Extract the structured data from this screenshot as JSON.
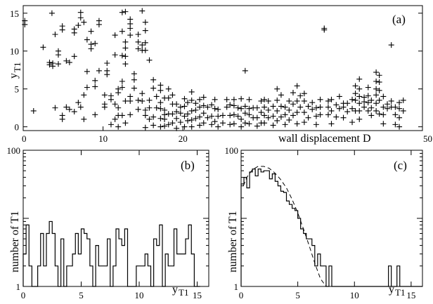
{
  "chart_data": [
    {
      "panel": "(a)",
      "type": "scatter",
      "xlabel": "wall displacement  D",
      "ylabel": "y",
      "ylabel_sub": "T1",
      "xlim": [
        0,
        50
      ],
      "ylim": [
        -0.5,
        16
      ],
      "xticks": [
        0,
        10,
        20,
        50
      ],
      "xtick_labels": [
        "0",
        "10",
        "20",
        "50"
      ],
      "yticks": [
        0,
        5,
        10,
        15
      ],
      "ytick_labels": [
        "0",
        "5",
        "10",
        "15"
      ],
      "marker": "plus",
      "clusters": [
        {
          "x": 0.2,
          "y": [
            13.5,
            14.0
          ]
        },
        {
          "x": 1.3,
          "y": [
            2.1
          ]
        },
        {
          "x": 2.5,
          "y": [
            10.5
          ]
        },
        {
          "x": 3.3,
          "y": [
            8.2,
            8.5
          ]
        },
        {
          "x": 3.6,
          "y": [
            15.0
          ]
        },
        {
          "x": 3.7,
          "y": [
            8.0,
            8.4
          ]
        },
        {
          "x": 4.0,
          "y": [
            2.5,
            12.2
          ]
        },
        {
          "x": 4.4,
          "y": [
            8.3,
            9.5,
            10.0
          ]
        },
        {
          "x": 4.9,
          "y": [
            1.0,
            1.5,
            12.8,
            13.3
          ]
        },
        {
          "x": 5.4,
          "y": [
            2.6,
            8.7
          ]
        },
        {
          "x": 5.8,
          "y": [
            2.3,
            8.5
          ]
        },
        {
          "x": 6.4,
          "y": [
            2.0,
            9.3,
            12.4,
            12.9
          ]
        },
        {
          "x": 6.9,
          "y": [
            3.2,
            13.4
          ]
        },
        {
          "x": 7.2,
          "y": [
            2.6,
            14.4,
            15.1
          ]
        },
        {
          "x": 7.6,
          "y": [
            1.0,
            4.2,
            13.8
          ]
        },
        {
          "x": 8.0,
          "y": [
            5.2,
            7.3,
            11.5
          ]
        },
        {
          "x": 8.5,
          "y": [
            10.3,
            10.9,
            12.6
          ]
        },
        {
          "x": 9.0,
          "y": [
            1.6,
            5.3,
            6.1,
            11.0
          ]
        },
        {
          "x": 9.5,
          "y": [
            7.4,
            13.5,
            14.0
          ]
        },
        {
          "x": 10.2,
          "y": [
            4.2,
            3.0,
            2.6
          ]
        },
        {
          "x": 10.5,
          "y": [
            6.9,
            7.4,
            8.4
          ]
        },
        {
          "x": 11.0,
          "y": [
            0.3,
            3.6,
            4.1
          ]
        },
        {
          "x": 11.5,
          "y": [
            1.0,
            3.0,
            9.5,
            12.1
          ]
        },
        {
          "x": 11.9,
          "y": [
            0.0,
            1.5,
            2.5,
            4.5,
            5.0
          ]
        },
        {
          "x": 12.4,
          "y": [
            1.5,
            5.2,
            6.0,
            9.4,
            12.6,
            15.1
          ]
        },
        {
          "x": 12.8,
          "y": [
            0.5,
            3.4,
            8.3,
            9.3,
            10.4,
            11.2,
            15.2
          ]
        },
        {
          "x": 13.4,
          "y": [
            1.6,
            3.4,
            4.0,
            12.1,
            13.0,
            13.6,
            14.2
          ]
        },
        {
          "x": 13.9,
          "y": [
            5.1,
            6.2,
            7.0
          ]
        },
        {
          "x": 14.4,
          "y": [
            2.3,
            3.5,
            10.3,
            11.2,
            12.2
          ]
        },
        {
          "x": 14.9,
          "y": [
            3.4,
            4.4,
            10.1,
            10.8,
            15.3
          ]
        },
        {
          "x": 15.3,
          "y": [
            -0.1,
            1.5,
            2.2,
            10.1,
            11.1,
            12.7,
            13.8
          ]
        },
        {
          "x": 15.8,
          "y": [
            1.0,
            2.5,
            3.5,
            8.8
          ]
        },
        {
          "x": 16.3,
          "y": [
            0.2,
            1.3,
            5.1,
            6.2
          ]
        },
        {
          "x": 16.7,
          "y": [
            2.5,
            4.0
          ]
        },
        {
          "x": 17.2,
          "y": [
            0.0,
            1.1,
            2.4,
            3.2,
            4.8,
            5.5
          ]
        },
        {
          "x": 17.7,
          "y": [
            0.1,
            1.0,
            1.6,
            2.2,
            3.8
          ]
        },
        {
          "x": 18.2,
          "y": [
            0.3,
            1.7,
            3.8,
            5.0
          ]
        },
        {
          "x": 18.7,
          "y": [
            0.5,
            1.7,
            3.0,
            4.2
          ]
        },
        {
          "x": 19.2,
          "y": [
            -0.2,
            1.1,
            2.0,
            3.0
          ]
        },
        {
          "x": 19.7,
          "y": [
            0.6,
            1.8,
            2.6
          ]
        },
        {
          "x": 20.2,
          "y": [
            0.0,
            1.4,
            2.7,
            3.7
          ]
        },
        {
          "x": 20.6,
          "y": [
            0.8,
            1.7,
            3.2
          ]
        },
        {
          "x": 21.1,
          "y": [
            0.0,
            0.9,
            2.1,
            3.5,
            4.6
          ]
        },
        {
          "x": 21.6,
          "y": [
            1.1,
            2.2,
            3.1
          ]
        },
        {
          "x": 22.1,
          "y": [
            0.2,
            1.3,
            2.6,
            3.6
          ]
        },
        {
          "x": 22.6,
          "y": [
            0.5,
            1.8,
            2.8,
            3.9
          ]
        },
        {
          "x": 23.1,
          "y": [
            1.2,
            2.6
          ]
        },
        {
          "x": 23.6,
          "y": [
            0.3,
            1.4,
            2.9
          ]
        },
        {
          "x": 24.0,
          "y": [
            0.7,
            2.4,
            3.6
          ]
        },
        {
          "x": 24.4,
          "y": [
            0.0,
            1.4,
            2.3
          ]
        },
        {
          "x": 25.0,
          "y": [
            0.5,
            1.5
          ]
        },
        {
          "x": 25.5,
          "y": [
            2.6,
            3.6
          ]
        },
        {
          "x": 25.9,
          "y": [
            0.3,
            1.5,
            2.9
          ]
        },
        {
          "x": 26.4,
          "y": [
            0.4,
            1.6,
            2.8,
            3.6
          ]
        },
        {
          "x": 26.9,
          "y": [
            1.4,
            2.5
          ]
        },
        {
          "x": 27.3,
          "y": [
            0.0,
            1.0,
            2.4,
            3.7
          ]
        },
        {
          "x": 27.8,
          "y": [
            0.5,
            1.8,
            2.7,
            7.4
          ]
        },
        {
          "x": 28.3,
          "y": [
            0.4,
            1.6,
            2.4,
            3.6
          ]
        },
        {
          "x": 28.8,
          "y": [
            1.2,
            2.5
          ]
        },
        {
          "x": 29.3,
          "y": [
            0.1,
            1.2,
            2.5
          ]
        },
        {
          "x": 29.8,
          "y": [
            0.5,
            1.9,
            3.4
          ]
        },
        {
          "x": 30.2,
          "y": [
            0.5,
            1.5,
            2.6,
            3.6
          ]
        },
        {
          "x": 30.7,
          "y": [
            1.2,
            2.2,
            3.4
          ]
        },
        {
          "x": 31.3,
          "y": [
            0.2,
            1.4,
            2.7
          ]
        },
        {
          "x": 31.8,
          "y": [
            0.8,
            2.1,
            3.5,
            5.0
          ]
        },
        {
          "x": 32.3,
          "y": [
            1.3,
            2.7,
            4.2
          ]
        },
        {
          "x": 32.8,
          "y": [
            0.3,
            1.6,
            2.6
          ]
        },
        {
          "x": 33.3,
          "y": [
            0.9,
            2.2,
            3.4
          ]
        },
        {
          "x": 33.8,
          "y": [
            1.5,
            3.0,
            4.5
          ]
        },
        {
          "x": 34.3,
          "y": [
            0.4,
            1.9,
            3.4,
            5.4
          ]
        },
        {
          "x": 34.7,
          "y": [
            2.6,
            4.1
          ]
        },
        {
          "x": 35.2,
          "y": [
            0.6,
            1.9,
            3.4,
            4.4
          ]
        },
        {
          "x": 35.7,
          "y": [
            1.2,
            2.7
          ]
        },
        {
          "x": 36.2,
          "y": [
            2.3,
            3.2
          ]
        },
        {
          "x": 36.7,
          "y": [
            0.3,
            1.4,
            2.5
          ]
        },
        {
          "x": 37.2,
          "y": [
            1.6,
            2.6,
            3.6
          ]
        },
        {
          "x": 37.7,
          "y": [
            12.8,
            13.0
          ]
        },
        {
          "x": 38.2,
          "y": [
            1.6,
            2.6,
            3.4
          ]
        },
        {
          "x": 38.6,
          "y": [
            0.4,
            2.1,
            3.6
          ]
        },
        {
          "x": 39.2,
          "y": [
            1.3,
            2.9
          ]
        },
        {
          "x": 39.6,
          "y": [
            2.4,
            4.0
          ]
        },
        {
          "x": 40.1,
          "y": [
            1.2,
            2.6,
            3.1
          ]
        },
        {
          "x": 40.6,
          "y": [
            2.0,
            3.1
          ]
        },
        {
          "x": 41.2,
          "y": [
            0.6,
            2.4,
            3.6
          ]
        },
        {
          "x": 41.6,
          "y": [
            2.1,
            3.5,
            4.4,
            5.4
          ]
        },
        {
          "x": 42.1,
          "y": [
            1.0,
            2.1,
            3.1,
            4.0,
            5.0,
            6.3
          ]
        },
        {
          "x": 42.7,
          "y": [
            2.6,
            3.3,
            3.9
          ]
        },
        {
          "x": 43.2,
          "y": [
            2.1,
            3.2,
            4.1,
            5.2
          ]
        },
        {
          "x": 43.6,
          "y": [
            1.5,
            2.5,
            3.5
          ]
        },
        {
          "x": 44.2,
          "y": [
            2.1,
            3.1,
            4.2,
            5.0,
            6.0,
            7.2
          ]
        },
        {
          "x": 44.6,
          "y": [
            1.7,
            3.5,
            4.8,
            5.9,
            6.8
          ]
        },
        {
          "x": 45.1,
          "y": [
            0.4,
            1.6,
            2.6,
            4.0
          ]
        },
        {
          "x": 45.6,
          "y": [
            2.4,
            3.0
          ]
        },
        {
          "x": 46.1,
          "y": [
            2.6,
            3.4,
            10.8
          ]
        },
        {
          "x": 46.6,
          "y": [
            0.3,
            1.6,
            2.6
          ]
        },
        {
          "x": 47.1,
          "y": [
            0.0,
            1.2,
            2.4,
            3.2
          ]
        },
        {
          "x": 47.6,
          "y": [
            2.1,
            3.5
          ]
        }
      ]
    },
    {
      "panel": "(b)",
      "type": "histogram",
      "xlabel": "y",
      "xlabel_sub": "T1",
      "ylabel": "number of T1",
      "yscale": "log",
      "xlim": [
        0,
        16
      ],
      "ylim": [
        1,
        100
      ],
      "xticks": [
        0,
        5,
        10,
        15
      ],
      "xtick_labels": [
        "0",
        "5",
        "10",
        "15"
      ],
      "yticks": [
        1,
        10,
        100
      ],
      "ytick_labels": [
        "1",
        "",
        "100"
      ],
      "bin_width": 0.25,
      "counts": [
        3,
        8,
        2,
        1,
        1,
        2,
        6,
        2,
        6,
        9,
        6,
        2,
        1,
        5,
        1,
        2,
        2,
        3,
        6,
        3,
        7,
        6,
        5,
        2,
        1,
        4,
        2,
        2,
        2,
        5,
        1,
        2,
        7,
        5,
        4,
        7,
        1,
        1,
        1,
        2,
        2,
        2,
        3,
        2,
        1,
        5,
        4,
        8,
        1,
        3,
        2,
        2,
        7,
        3,
        3,
        3,
        5,
        8,
        3,
        1,
        1
      ]
    },
    {
      "panel": "(c)",
      "type": "histogram",
      "xlabel": "y",
      "xlabel_sub": "T1",
      "ylabel": "number of T1",
      "yscale": "log",
      "xlim": [
        0,
        16
      ],
      "ylim": [
        1,
        100
      ],
      "xticks": [
        0,
        5,
        10,
        15
      ],
      "xtick_labels": [
        "0",
        "5",
        "10",
        "15"
      ],
      "yticks": [
        1,
        10,
        100
      ],
      "ytick_labels": [
        "1",
        "",
        "100"
      ],
      "bin_width": 0.25,
      "counts": [
        32,
        40,
        28,
        48,
        53,
        42,
        53,
        48,
        50,
        50,
        38,
        45,
        35,
        30,
        25,
        24,
        18,
        16,
        14,
        13,
        10,
        7,
        6,
        5,
        5,
        4,
        2,
        3,
        2,
        2,
        1,
        2,
        1,
        1,
        1,
        1,
        1,
        1,
        1,
        1,
        1,
        1,
        1,
        1,
        1,
        1,
        1,
        1,
        1,
        1,
        1,
        1,
        1,
        1,
        1,
        2,
        1,
        1,
        1,
        1,
        1,
        1,
        1,
        1
      ],
      "extra_bars": [
        {
          "x": 13.0,
          "count": 2
        }
      ],
      "fit_curve": {
        "style": "dashed",
        "x": [
          0.2,
          0.5,
          1.0,
          1.5,
          2.0,
          2.5,
          3.0,
          3.5,
          4.0,
          4.5,
          5.0,
          5.5,
          6.0,
          6.5,
          7.0,
          7.5
        ],
        "y": [
          30,
          40,
          52,
          58,
          58,
          54,
          46,
          37,
          28,
          19,
          12,
          7,
          4,
          2.2,
          1.3,
          1.0
        ]
      }
    }
  ],
  "panel_tags": {
    "a": "(a)",
    "b": "(b)",
    "c": "(c)"
  }
}
